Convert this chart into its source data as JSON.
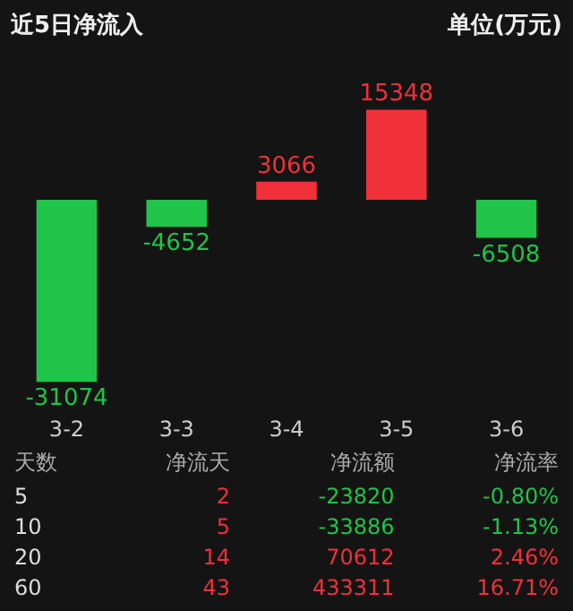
{
  "chart_data": [
    {
      "type": "bar",
      "title": "近5日净流入",
      "ylabel": "单位(万元)",
      "categories": [
        "3-2",
        "3-3",
        "3-4",
        "3-5",
        "3-6"
      ],
      "values": [
        -31074,
        -4652,
        3066,
        15348,
        -6508
      ],
      "colors": [
        "#1fc449",
        "#1fc449",
        "#f0313a",
        "#f0313a",
        "#1fc449"
      ],
      "data_labels": true,
      "tick_labels": "x"
    },
    {
      "type": "other",
      "categories": [
        "天数",
        "净流天",
        "净流额",
        "净流率"
      ],
      "annotations": [
        "5",
        "2",
        "-23820",
        "-0.80%",
        "10",
        "5",
        "-33886",
        "-1.13%",
        "20",
        "14",
        "70612",
        "2.46%",
        "60",
        "43",
        "433311",
        "16.71%"
      ]
    }
  ]
}
